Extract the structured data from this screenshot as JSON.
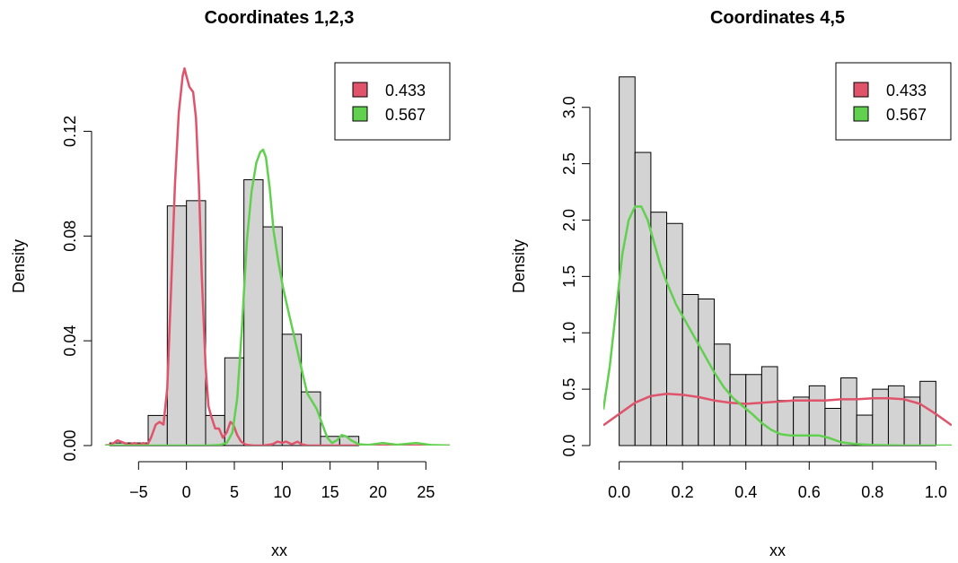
{
  "colors": {
    "component_1": "#DF536B",
    "component_2": "#61D04F",
    "bar_fill": "#D3D3D3",
    "bar_stroke": "#000000"
  },
  "chart_data": [
    {
      "type": "bar",
      "title": "Coordinates 1,2,3",
      "xlabel": "xx",
      "ylabel": "Density",
      "xlim": [
        -8.5,
        27.5
      ],
      "ylim": [
        0,
        0.14
      ],
      "xticks": [
        -5,
        0,
        5,
        10,
        15,
        20,
        25
      ],
      "xtick_labels": [
        "−5",
        "0",
        "5",
        "10",
        "15",
        "20",
        "25"
      ],
      "yticks": [
        0,
        0.04,
        0.08,
        0.12
      ],
      "ytick_labels": [
        "0.00",
        "0.04",
        "0.08",
        "0.12"
      ],
      "histogram": {
        "bins": [
          [
            -8,
            -6
          ],
          [
            -6,
            -4
          ],
          [
            -4,
            -2
          ],
          [
            -2,
            0
          ],
          [
            0,
            2
          ],
          [
            2,
            4
          ],
          [
            4,
            6
          ],
          [
            6,
            8
          ],
          [
            8,
            10
          ],
          [
            10,
            12
          ],
          [
            12,
            14
          ],
          [
            14,
            16
          ],
          [
            16,
            18
          ]
        ],
        "values": [
          0.001,
          0.001,
          0.0115,
          0.0915,
          0.0935,
          0.0115,
          0.0335,
          0.1015,
          0.0835,
          0.0425,
          0.0205,
          0.0035,
          0.0035
        ]
      },
      "series": [
        {
          "name": "0.433",
          "color": "#DF536B",
          "x": [
            -9,
            -8,
            -7.6,
            -7.2,
            -6.5,
            -6,
            -5.4,
            -5,
            -4.5,
            -4.1,
            -3.7,
            -3.2,
            -2.8,
            -2.4,
            -2,
            -1.6,
            -1.2,
            -0.8,
            -0.4,
            -0.2,
            0,
            0.3,
            0.7,
            1,
            1.3,
            1.6,
            2,
            2.3,
            2.6,
            3,
            3.4,
            3.8,
            4.2,
            4.6,
            4.9,
            5.3,
            5.7,
            6.2,
            7,
            8,
            9,
            9.5,
            10,
            10.4,
            11,
            11.6,
            12,
            12.6,
            14,
            17,
            20,
            23,
            26,
            28
          ],
          "y": [
            0,
            0.0002,
            0.001,
            0.002,
            0.001,
            0.0003,
            0.001,
            0.0002,
            0.001,
            0.0001,
            0.003,
            0.008,
            0.009,
            0.008,
            0.022,
            0.06,
            0.1,
            0.127,
            0.141,
            0.144,
            0.141,
            0.137,
            0.135,
            0.125,
            0.1,
            0.065,
            0.03,
            0.015,
            0.011,
            0.0065,
            0.0065,
            0.003,
            0.005,
            0.009,
            0.008,
            0.004,
            0.0015,
            0.0003,
            0,
            0,
            0.0005,
            0.0015,
            0.001,
            0.0015,
            0.0005,
            0.0015,
            0.0005,
            0,
            0,
            0,
            0,
            0,
            0,
            0
          ]
        },
        {
          "name": "0.567",
          "color": "#61D04F",
          "x": [
            -9,
            -2,
            2,
            3.5,
            4.2,
            4.8,
            5.3,
            5.8,
            6.3,
            6.8,
            7.3,
            7.7,
            8,
            8.3,
            8.7,
            9.1,
            9.6,
            10.1,
            10.6,
            11.1,
            11.6,
            12.1,
            12.6,
            13.1,
            13.6,
            14.2,
            14.7,
            15.2,
            15.7,
            16.2,
            16.7,
            17.2,
            18,
            19,
            20.5,
            22,
            24,
            25.5,
            27.5
          ],
          "y": [
            0,
            0,
            0,
            0.0002,
            0.001,
            0.005,
            0.018,
            0.045,
            0.078,
            0.097,
            0.108,
            0.112,
            0.113,
            0.11,
            0.098,
            0.082,
            0.07,
            0.06,
            0.052,
            0.044,
            0.036,
            0.028,
            0.02,
            0.017,
            0.014,
            0.008,
            0.003,
            0.001,
            0.002,
            0.004,
            0.0035,
            0.002,
            0.0005,
            0.0002,
            0.001,
            0.0003,
            0.001,
            0.0002,
            0
          ]
        }
      ],
      "legend": {
        "position": "top-right",
        "entries": [
          {
            "label": "0.433",
            "color": "#DF536B"
          },
          {
            "label": "0.567",
            "color": "#61D04F"
          }
        ]
      }
    },
    {
      "type": "bar",
      "title": "Coordinates 4,5",
      "xlabel": "xx",
      "ylabel": "Density",
      "xlim": [
        -0.05,
        1.05
      ],
      "ylim": [
        0,
        3.3
      ],
      "xticks": [
        0,
        0.2,
        0.4,
        0.6,
        0.8,
        1.0
      ],
      "xtick_labels": [
        "0.0",
        "0.2",
        "0.4",
        "0.6",
        "0.8",
        "1.0"
      ],
      "yticks": [
        0,
        0.5,
        1.0,
        1.5,
        2.0,
        2.5,
        3.0
      ],
      "ytick_labels": [
        "0.0",
        "0.5",
        "1.0",
        "1.5",
        "2.0",
        "2.5",
        "3.0"
      ],
      "histogram": {
        "bins": [
          [
            0,
            0.05
          ],
          [
            0.05,
            0.1
          ],
          [
            0.1,
            0.15
          ],
          [
            0.15,
            0.2
          ],
          [
            0.2,
            0.25
          ],
          [
            0.25,
            0.3
          ],
          [
            0.3,
            0.35
          ],
          [
            0.35,
            0.4
          ],
          [
            0.4,
            0.45
          ],
          [
            0.45,
            0.5
          ],
          [
            0.5,
            0.55
          ],
          [
            0.55,
            0.6
          ],
          [
            0.6,
            0.65
          ],
          [
            0.65,
            0.7
          ],
          [
            0.7,
            0.75
          ],
          [
            0.75,
            0.8
          ],
          [
            0.8,
            0.85
          ],
          [
            0.85,
            0.9
          ],
          [
            0.9,
            0.95
          ],
          [
            0.95,
            1.0
          ]
        ],
        "values": [
          3.27,
          2.6,
          2.07,
          1.97,
          1.34,
          1.3,
          0.9,
          0.63,
          0.63,
          0.7,
          0.4,
          0.43,
          0.53,
          0.33,
          0.6,
          0.27,
          0.5,
          0.53,
          0.43,
          0.57
        ]
      },
      "series": [
        {
          "name": "0.433",
          "color": "#DF536B",
          "x": [
            -0.05,
            0,
            0.05,
            0.1,
            0.15,
            0.2,
            0.25,
            0.3,
            0.35,
            0.4,
            0.45,
            0.5,
            0.55,
            0.6,
            0.65,
            0.7,
            0.75,
            0.8,
            0.85,
            0.9,
            0.95,
            1.0,
            1.05
          ],
          "y": [
            0.18,
            0.28,
            0.38,
            0.44,
            0.46,
            0.45,
            0.43,
            0.4,
            0.38,
            0.37,
            0.38,
            0.39,
            0.4,
            0.4,
            0.4,
            0.41,
            0.41,
            0.42,
            0.42,
            0.41,
            0.37,
            0.28,
            0.18
          ]
        },
        {
          "name": "0.567",
          "color": "#61D04F",
          "x": [
            -0.05,
            -0.03,
            -0.01,
            0.01,
            0.03,
            0.05,
            0.07,
            0.09,
            0.11,
            0.13,
            0.15,
            0.18,
            0.21,
            0.24,
            0.27,
            0.3,
            0.33,
            0.36,
            0.39,
            0.42,
            0.45,
            0.48,
            0.51,
            0.54,
            0.57,
            0.6,
            0.63,
            0.66,
            0.7,
            0.74,
            0.8,
            0.9,
            1.0,
            1.05
          ],
          "y": [
            0.32,
            0.7,
            1.2,
            1.7,
            2.0,
            2.12,
            2.12,
            2.0,
            1.8,
            1.6,
            1.45,
            1.25,
            1.1,
            0.95,
            0.8,
            0.65,
            0.52,
            0.42,
            0.35,
            0.28,
            0.2,
            0.14,
            0.1,
            0.09,
            0.09,
            0.09,
            0.09,
            0.07,
            0.03,
            0.015,
            0.005,
            0,
            0,
            0
          ]
        }
      ],
      "legend": {
        "position": "top-right",
        "entries": [
          {
            "label": "0.433",
            "color": "#DF536B"
          },
          {
            "label": "0.567",
            "color": "#61D04F"
          }
        ]
      }
    }
  ]
}
